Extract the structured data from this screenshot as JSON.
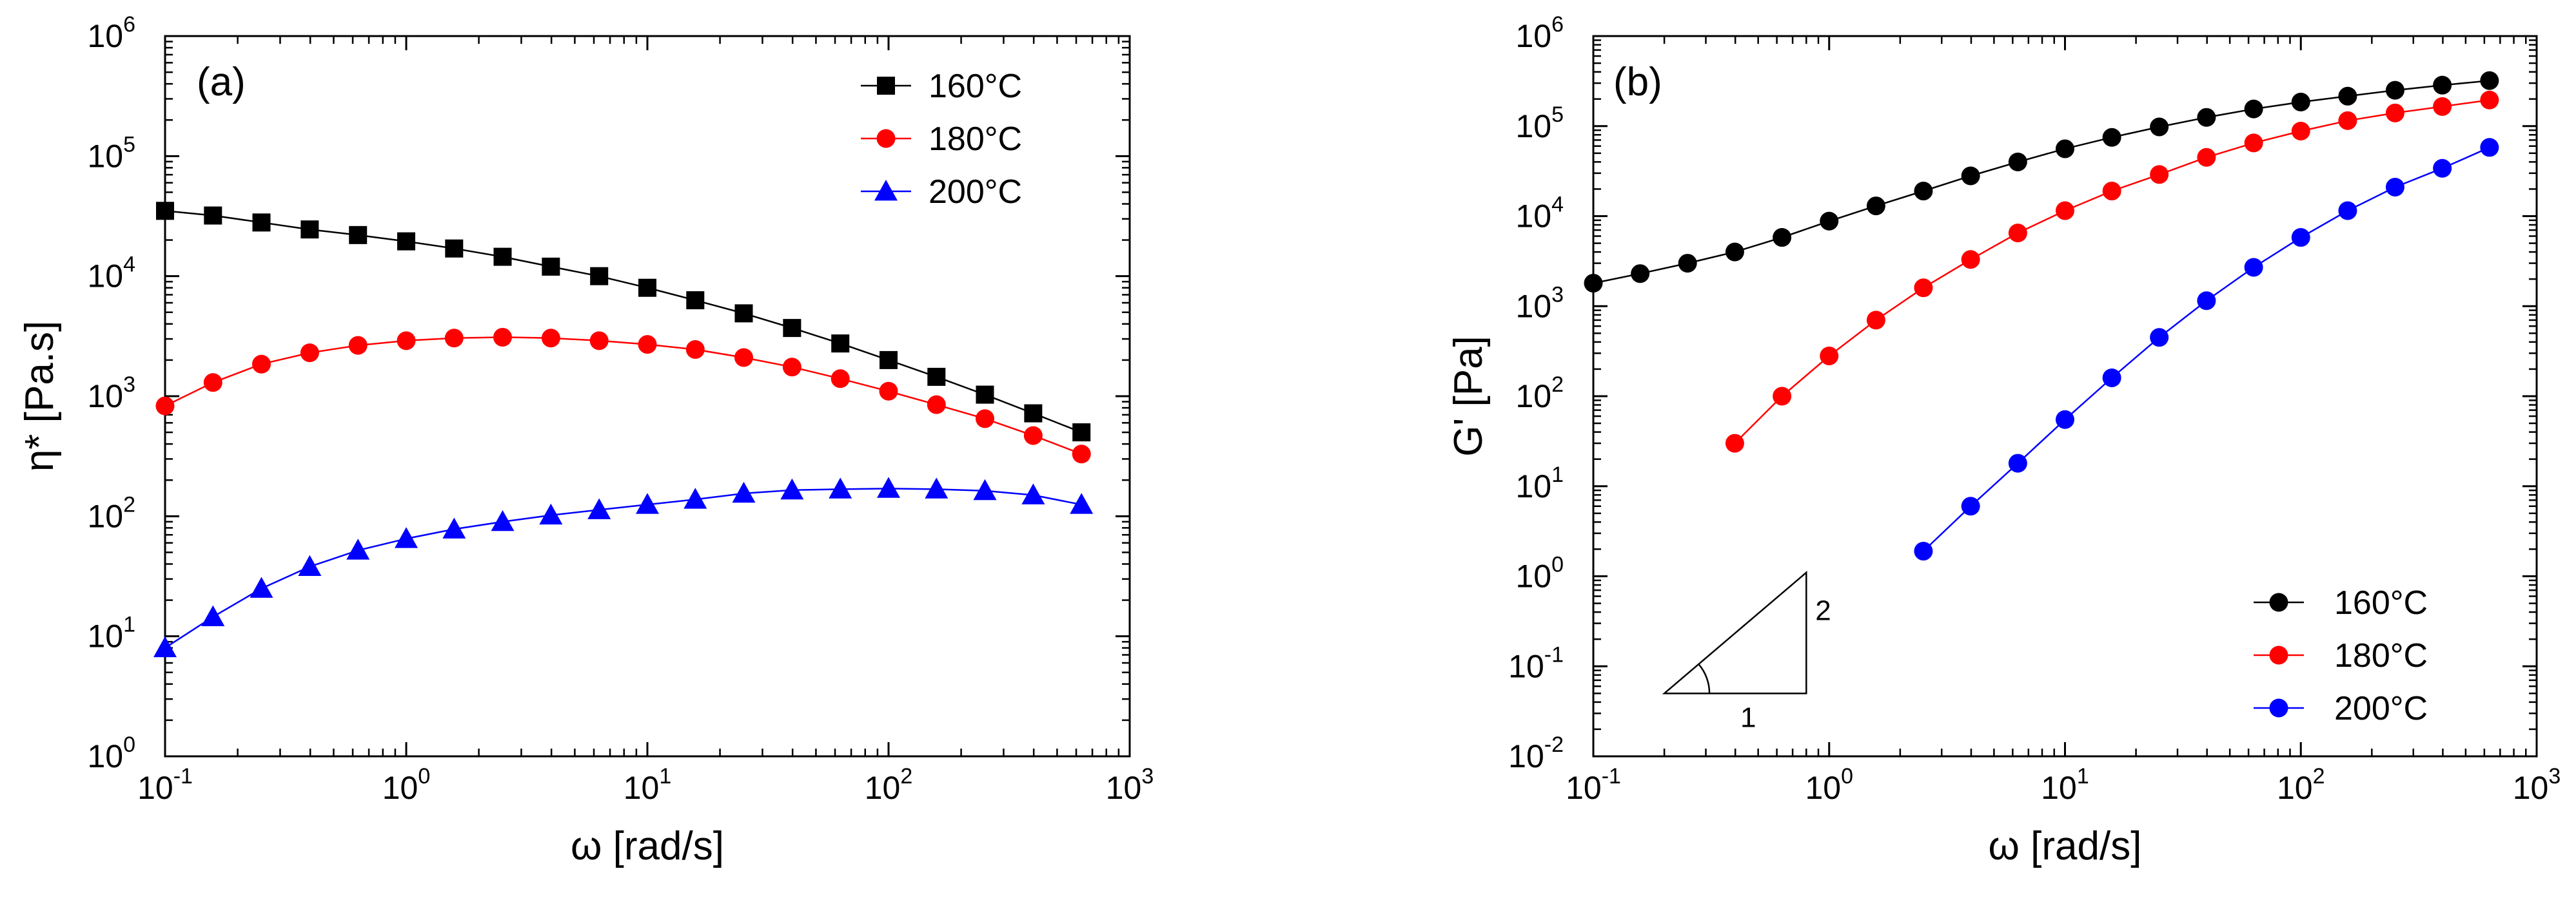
{
  "chart_data": [
    {
      "type": "line",
      "panel_label": "(a)",
      "xlabel": "ω [rad/s]",
      "ylabel": "η* [Pa.s]",
      "xscale": "log",
      "yscale": "log",
      "xlim": [
        0.1,
        1000
      ],
      "ylim": [
        1,
        1000000
      ],
      "legend_position": "top-right",
      "x_ticks": [
        {
          "value": 0.1,
          "base": "10",
          "exp": "-1"
        },
        {
          "value": 1,
          "base": "10",
          "exp": "0"
        },
        {
          "value": 10,
          "base": "10",
          "exp": "1"
        },
        {
          "value": 100,
          "base": "10",
          "exp": "2"
        },
        {
          "value": 1000,
          "base": "10",
          "exp": "3"
        }
      ],
      "y_ticks": [
        {
          "value": 1,
          "base": "10",
          "exp": "0"
        },
        {
          "value": 10,
          "base": "10",
          "exp": "1"
        },
        {
          "value": 100,
          "base": "10",
          "exp": "2"
        },
        {
          "value": 1000,
          "base": "10",
          "exp": "3"
        },
        {
          "value": 10000,
          "base": "10",
          "exp": "4"
        },
        {
          "value": 100000,
          "base": "10",
          "exp": "5"
        },
        {
          "value": 1000000,
          "base": "10",
          "exp": "6"
        }
      ],
      "series": [
        {
          "name": "160°C",
          "color": "#000000",
          "marker": "square",
          "x": [
            0.1,
            0.158,
            0.251,
            0.398,
            0.631,
            1,
            1.58,
            2.51,
            3.98,
            6.31,
            10,
            15.8,
            25.1,
            39.8,
            63.1,
            100,
            158,
            251,
            398,
            631
          ],
          "y": [
            35000,
            32000,
            28000,
            24500,
            22000,
            19500,
            17000,
            14500,
            12000,
            10000,
            8000,
            6300,
            4900,
            3700,
            2750,
            2000,
            1450,
            1030,
            720,
            500
          ]
        },
        {
          "name": "180°C",
          "color": "#ff0000",
          "marker": "circle",
          "x": [
            0.1,
            0.158,
            0.251,
            0.398,
            0.631,
            1,
            1.58,
            2.51,
            3.98,
            6.31,
            10,
            15.8,
            25.1,
            39.8,
            63.1,
            100,
            158,
            251,
            398,
            631
          ],
          "y": [
            830,
            1300,
            1850,
            2300,
            2650,
            2900,
            3050,
            3100,
            3050,
            2900,
            2700,
            2450,
            2100,
            1750,
            1400,
            1100,
            850,
            650,
            470,
            330
          ]
        },
        {
          "name": "200°C",
          "color": "#0000ff",
          "marker": "triangle",
          "x": [
            0.1,
            0.158,
            0.251,
            0.398,
            0.631,
            1,
            1.58,
            2.51,
            3.98,
            6.31,
            10,
            15.8,
            25.1,
            39.8,
            63.1,
            100,
            158,
            251,
            398,
            631
          ],
          "y": [
            8,
            14.5,
            25,
            38,
            52,
            65,
            78,
            90,
            102,
            113,
            125,
            138,
            155,
            165,
            168,
            170,
            168,
            163,
            150,
            125
          ]
        }
      ]
    },
    {
      "type": "line",
      "panel_label": "(b)",
      "xlabel": "ω [rad/s]",
      "ylabel": "G' [Pa]",
      "xscale": "log",
      "yscale": "log",
      "xlim": [
        0.1,
        1000
      ],
      "ylim": [
        0.01,
        1000000
      ],
      "legend_position": "bottom-right",
      "x_ticks": [
        {
          "value": 0.1,
          "base": "10",
          "exp": "-1"
        },
        {
          "value": 1,
          "base": "10",
          "exp": "0"
        },
        {
          "value": 10,
          "base": "10",
          "exp": "1"
        },
        {
          "value": 100,
          "base": "10",
          "exp": "2"
        },
        {
          "value": 1000,
          "base": "10",
          "exp": "3"
        }
      ],
      "y_ticks": [
        {
          "value": 0.01,
          "base": "10",
          "exp": "-2"
        },
        {
          "value": 0.1,
          "base": "10",
          "exp": "-1"
        },
        {
          "value": 1,
          "base": "10",
          "exp": "0"
        },
        {
          "value": 10,
          "base": "10",
          "exp": "1"
        },
        {
          "value": 100,
          "base": "10",
          "exp": "2"
        },
        {
          "value": 1000,
          "base": "10",
          "exp": "3"
        },
        {
          "value": 10000,
          "base": "10",
          "exp": "4"
        },
        {
          "value": 100000,
          "base": "10",
          "exp": "5"
        },
        {
          "value": 1000000,
          "base": "10",
          "exp": "6"
        }
      ],
      "annotation": {
        "type": "slope-triangle",
        "horizontal_label": "1",
        "vertical_label": "2",
        "x_range": [
          0.2,
          0.8
        ],
        "y_range": [
          0.05,
          1.1
        ]
      },
      "series": [
        {
          "name": "160°C",
          "color": "#000000",
          "marker": "circle",
          "x": [
            0.1,
            0.158,
            0.251,
            0.398,
            0.631,
            1,
            1.58,
            2.51,
            3.98,
            6.31,
            10,
            15.8,
            25.1,
            39.8,
            63.1,
            100,
            158,
            251,
            398,
            631
          ],
          "y": [
            1800,
            2300,
            3000,
            4000,
            5800,
            8800,
            13000,
            19000,
            28000,
            40000,
            56000,
            75000,
            98000,
            125000,
            155000,
            185000,
            215000,
            250000,
            285000,
            320000
          ]
        },
        {
          "name": "180°C",
          "color": "#ff0000",
          "marker": "circle",
          "x": [
            0.398,
            0.631,
            1,
            1.58,
            2.51,
            3.98,
            6.31,
            10,
            15.8,
            25.1,
            39.8,
            63.1,
            100,
            158,
            251,
            398,
            631
          ],
          "y": [
            30,
            100,
            280,
            700,
            1600,
            3300,
            6500,
            11500,
            19000,
            29000,
            45000,
            65000,
            88000,
            115000,
            140000,
            165000,
            195000
          ]
        },
        {
          "name": "200°C",
          "color": "#0000ff",
          "marker": "circle",
          "x": [
            2.51,
            3.98,
            6.31,
            10,
            15.8,
            25.1,
            39.8,
            63.1,
            100,
            158,
            251,
            398,
            631
          ],
          "y": [
            1.9,
            6,
            18,
            55,
            160,
            450,
            1150,
            2700,
            5800,
            11500,
            21000,
            34000,
            58000
          ]
        }
      ]
    }
  ]
}
